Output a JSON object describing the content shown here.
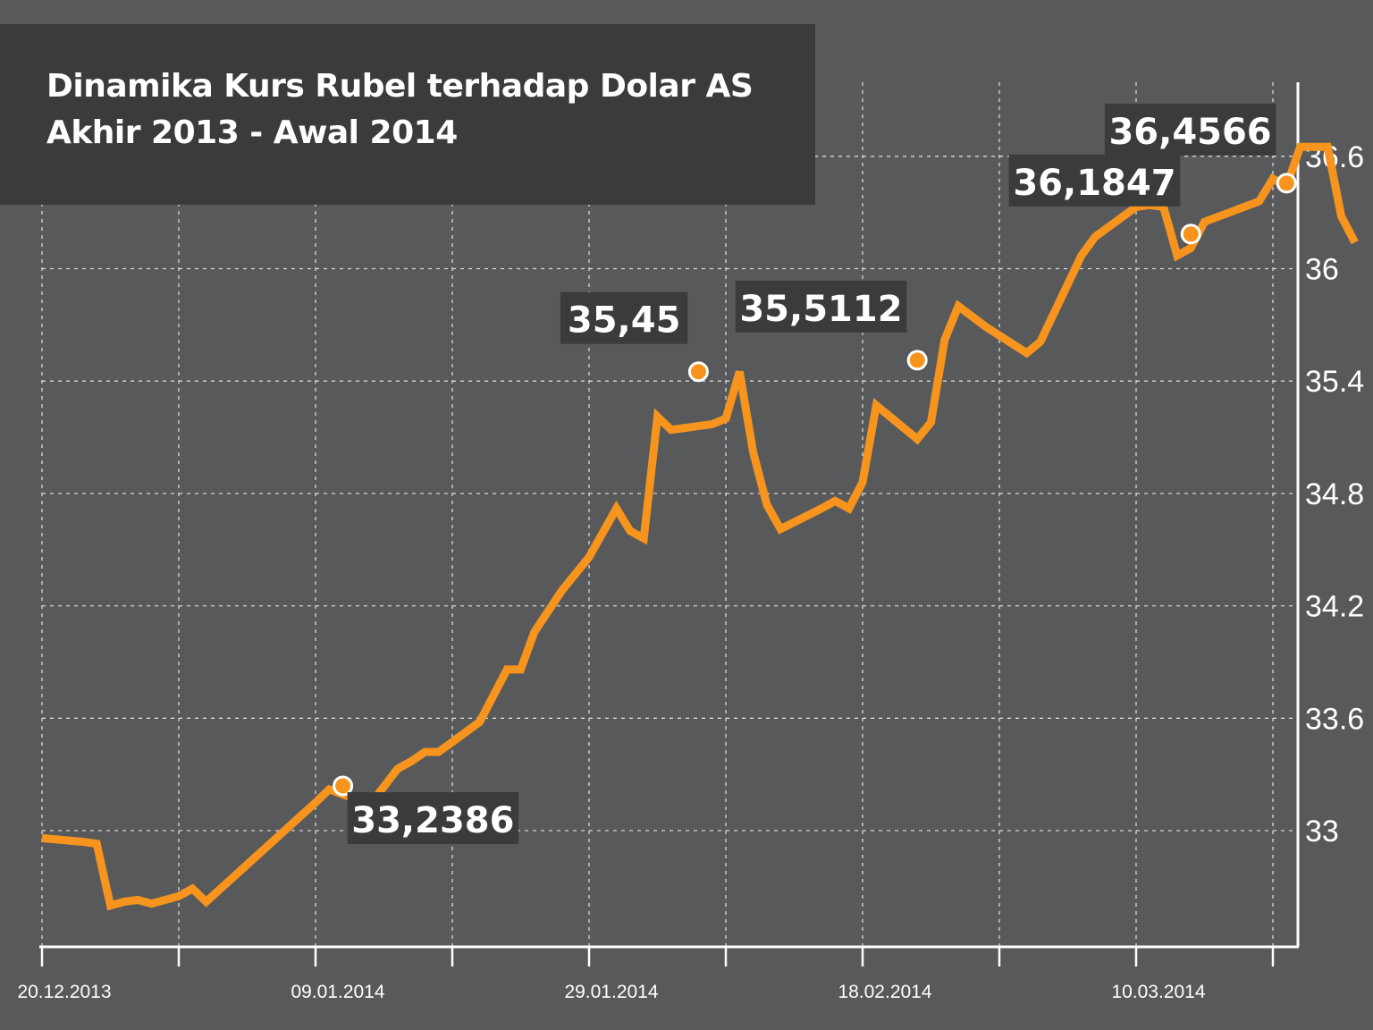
{
  "colors": {
    "background": "#58595b",
    "line": "#f7941d",
    "grid": "#d8d8d8",
    "axis": "#ffffff",
    "label_box": "#3b3b3c",
    "text": "#ffffff"
  },
  "chart_data": {
    "type": "line",
    "title_line1": "Dinamika Kurs Rubel terhadap Dolar AS",
    "title_line2": "Akhir 2013 - Awal 2014",
    "xlabel": "",
    "ylabel": "",
    "x_ticks": [
      "20.12.2013",
      "09.01.2014",
      "29.01.2014",
      "18.02.2014",
      "10.03.2014"
    ],
    "y_ticks": [
      "33",
      "33.6",
      "34.2",
      "34.8",
      "35.4",
      "36",
      "36.6"
    ],
    "y_tick_values": [
      33,
      33.6,
      34.2,
      34.8,
      35.4,
      36,
      36.6
    ],
    "ylim": [
      32.4,
      36.96
    ],
    "xlim": [
      "2013-12-20",
      "2014-03-25"
    ],
    "grid": true,
    "series": [
      {
        "points": [
          [
            "2013-12-20",
            32.96
          ],
          [
            "2013-12-23",
            32.94
          ],
          [
            "2013-12-24",
            32.93
          ],
          [
            "2013-12-25",
            32.6
          ],
          [
            "2013-12-26",
            32.62
          ],
          [
            "2013-12-27",
            32.63
          ],
          [
            "2013-12-28",
            32.61
          ],
          [
            "2013-12-30",
            32.65
          ],
          [
            "2013-12-31",
            32.69
          ],
          [
            "2014-01-01",
            32.62
          ],
          [
            "2014-01-09",
            33.15
          ],
          [
            "2014-01-10",
            33.22
          ],
          [
            "2014-01-13",
            33.14
          ],
          [
            "2014-01-15",
            33.33
          ],
          [
            "2014-01-16",
            33.37
          ],
          [
            "2014-01-17",
            33.42
          ],
          [
            "2014-01-18",
            33.42
          ],
          [
            "2014-01-21",
            33.58
          ],
          [
            "2014-01-22",
            33.72
          ],
          [
            "2014-01-23",
            33.86
          ],
          [
            "2014-01-24",
            33.86
          ],
          [
            "2014-01-25",
            34.06
          ],
          [
            "2014-01-27",
            34.28
          ],
          [
            "2014-01-29",
            34.46
          ],
          [
            "2014-01-31",
            34.72
          ],
          [
            "2014-02-01",
            34.6
          ],
          [
            "2014-02-02",
            34.56
          ],
          [
            "2014-02-03",
            35.21
          ],
          [
            "2014-02-04",
            35.14
          ],
          [
            "2014-02-07",
            35.17
          ],
          [
            "2014-02-08",
            35.2
          ],
          [
            "2014-02-09",
            35.45
          ],
          [
            "2014-02-10",
            35.02
          ],
          [
            "2014-02-11",
            34.74
          ],
          [
            "2014-02-12",
            34.61
          ],
          [
            "2014-02-15",
            34.72
          ],
          [
            "2014-02-16",
            34.76
          ],
          [
            "2014-02-17",
            34.72
          ],
          [
            "2014-02-18",
            34.86
          ],
          [
            "2014-02-19",
            35.27
          ],
          [
            "2014-02-22",
            35.09
          ],
          [
            "2014-02-23",
            35.18
          ],
          [
            "2014-02-24",
            35.62
          ],
          [
            "2014-02-25",
            35.8
          ],
          [
            "2014-02-27",
            35.69
          ],
          [
            "2014-03-02",
            35.55
          ],
          [
            "2014-03-03",
            35.61
          ],
          [
            "2014-03-06",
            36.07
          ],
          [
            "2014-03-07",
            36.17
          ],
          [
            "2014-03-10",
            36.33
          ],
          [
            "2014-03-11",
            36.34
          ],
          [
            "2014-03-12",
            36.33
          ],
          [
            "2014-03-13",
            36.07
          ],
          [
            "2014-03-14",
            36.11
          ],
          [
            "2014-03-15",
            36.25
          ],
          [
            "2014-03-19",
            36.36
          ],
          [
            "2014-03-20",
            36.48
          ],
          [
            "2014-03-21",
            36.44
          ],
          [
            "2014-03-22",
            36.65
          ],
          [
            "2014-03-23",
            36.65
          ],
          [
            "2014-03-24",
            36.65
          ],
          [
            "2014-03-25",
            36.28
          ],
          [
            "2014-03-26",
            36.14
          ]
        ]
      }
    ],
    "annotations": [
      {
        "date": "2014-01-11",
        "value": 33.2386,
        "label": "33,2386",
        "position": "below-right"
      },
      {
        "date": "2014-02-06",
        "value": 35.45,
        "label": "35,45",
        "position": "above-left"
      },
      {
        "date": "2014-02-22",
        "value": 35.5112,
        "label": "35,5112",
        "position": "above-left"
      },
      {
        "date": "2014-03-14",
        "value": 36.1847,
        "label": "36,1847",
        "position": "above-left"
      },
      {
        "date": "2014-03-21",
        "value": 36.4566,
        "label": "36,4566",
        "position": "above-left"
      }
    ]
  }
}
